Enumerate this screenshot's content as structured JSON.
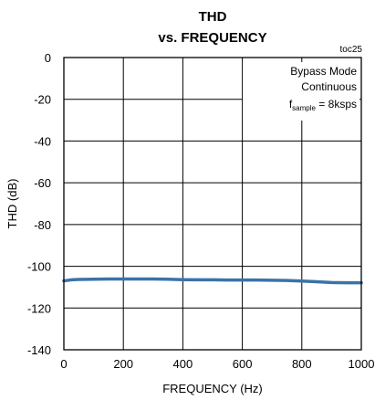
{
  "chart_data": {
    "type": "line",
    "title": "THD",
    "subtitle": "vs. FREQUENCY",
    "tag": "toc25",
    "xlabel": "FREQUENCY (Hz)",
    "ylabel": "THD (dB)",
    "xlim": [
      0,
      1000
    ],
    "ylim": [
      -140,
      0
    ],
    "xticks": [
      "0",
      "200",
      "400",
      "600",
      "800",
      "1000"
    ],
    "yticks": [
      "0",
      "-20",
      "-40",
      "-60",
      "-80",
      "-100",
      "-120",
      "-140"
    ],
    "grid": true,
    "annotation": {
      "line1": "Bypass Mode",
      "line2": "Continuous",
      "line3_pre": "f",
      "line3_sub": "sample",
      "line3_post": " = 8ksps"
    },
    "series": [
      {
        "color": "#3a73a8",
        "x": [
          0,
          25,
          50,
          100,
          150,
          200,
          250,
          300,
          350,
          400,
          450,
          500,
          550,
          600,
          650,
          700,
          750,
          800,
          850,
          900,
          950,
          1000
        ],
        "y": [
          -107.0,
          -106.5,
          -106.3,
          -106.2,
          -106.1,
          -106.1,
          -106.1,
          -106.1,
          -106.2,
          -106.4,
          -106.5,
          -106.5,
          -106.6,
          -106.6,
          -106.6,
          -106.7,
          -106.8,
          -107.1,
          -107.4,
          -107.8,
          -107.9,
          -107.9
        ]
      }
    ]
  }
}
